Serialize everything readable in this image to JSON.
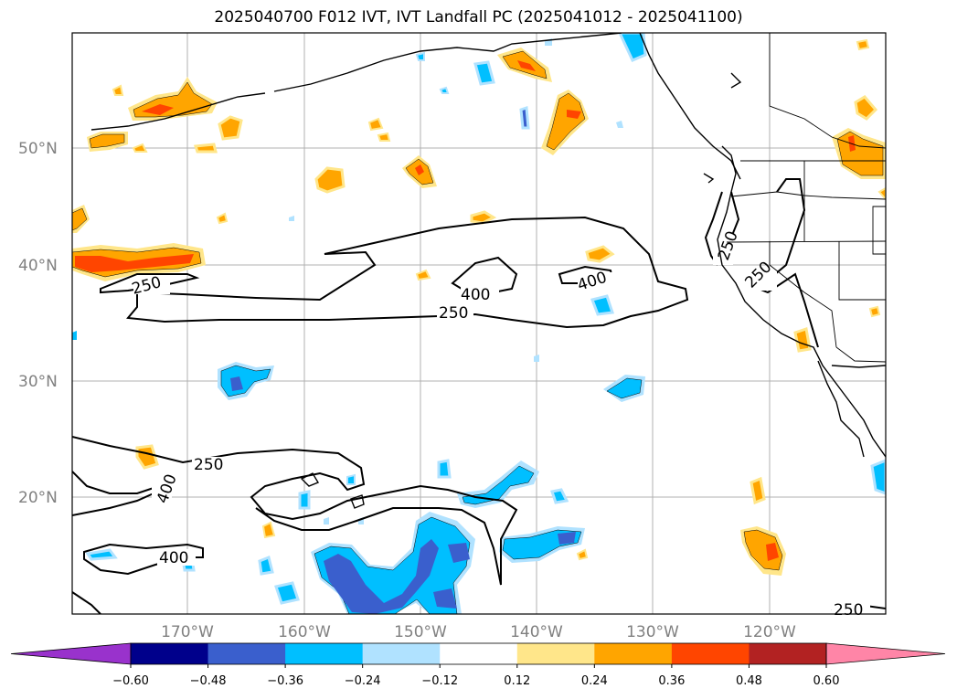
{
  "title": "2025040700 F012 IVT, IVT Landfall PC (2025041012 - 2025041100)",
  "map": {
    "lat_ticks": [
      "20°N",
      "30°N",
      "40°N",
      "50°N"
    ],
    "lon_ticks": [
      "170°W",
      "160°W",
      "150°W",
      "140°W",
      "130°W",
      "120°W"
    ],
    "contour_labels": [
      "250",
      "250",
      "250",
      "250",
      "400",
      "400",
      "250",
      "400",
      "400",
      "250"
    ],
    "coast_color": "#000000",
    "grid_color": "#b0b0b0"
  },
  "colorbar": {
    "ticks": [
      "−0.60",
      "−0.48",
      "−0.36",
      "−0.24",
      "−0.12",
      "0.12",
      "0.24",
      "0.36",
      "0.48",
      "0.60"
    ],
    "colors": [
      "#9932cc",
      "#00008b",
      "#3a5fcd",
      "#00bfff",
      "#b0e2ff",
      "#ffffff",
      "#ffe68a",
      "#ffa500",
      "#ff4500",
      "#b22222",
      "#ff85a7"
    ],
    "extend": "both"
  }
}
